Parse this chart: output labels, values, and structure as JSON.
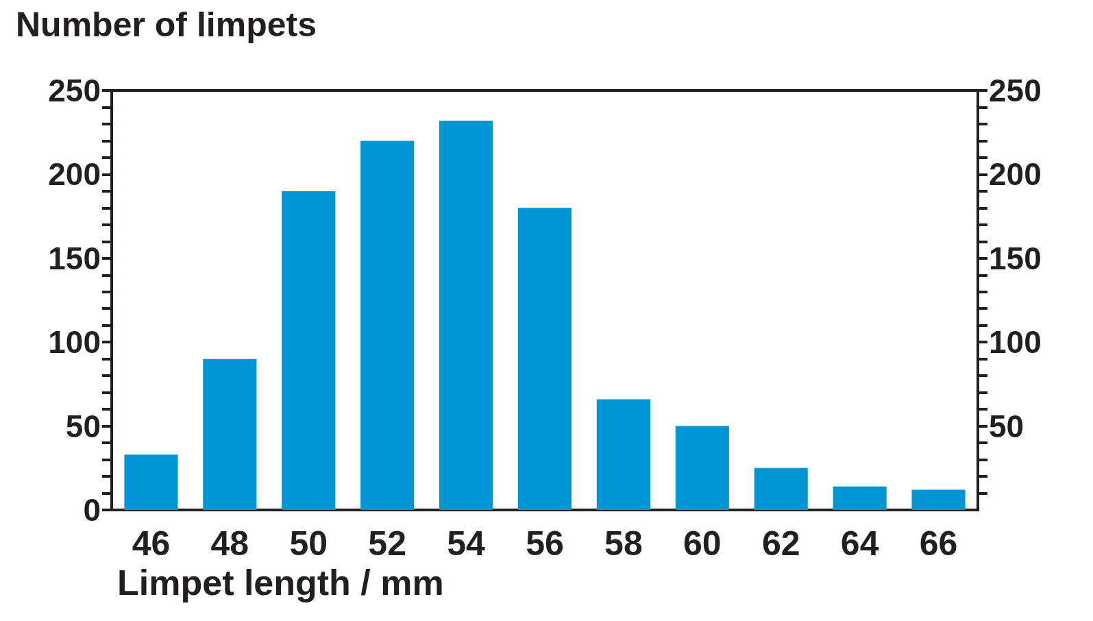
{
  "chart_data": {
    "type": "bar",
    "title": "Number of limpets",
    "xlabel": "Limpet length / mm",
    "categories": [
      "46",
      "48",
      "50",
      "52",
      "54",
      "56",
      "58",
      "60",
      "62",
      "64",
      "66"
    ],
    "values": [
      33,
      90,
      190,
      220,
      232,
      180,
      66,
      50,
      25,
      14,
      12
    ],
    "color": "#0096d6",
    "ylim": [
      0,
      250
    ],
    "yticks": [
      0,
      {
        "value": 10,
        "label": null
      },
      {
        "value": 20,
        "label": null
      },
      {
        "value": 30,
        "label": null
      },
      {
        "value": 40,
        "label": null
      },
      50,
      {
        "value": 60,
        "label": null
      },
      {
        "value": 70,
        "label": null
      },
      {
        "value": 80,
        "label": null
      },
      {
        "value": 90,
        "label": null
      },
      100,
      {
        "value": 110,
        "label": null
      },
      {
        "value": 120,
        "label": null
      },
      {
        "value": 130,
        "label": null
      },
      {
        "value": 140,
        "label": null
      },
      150,
      {
        "value": 160,
        "label": null
      },
      {
        "value": 170,
        "label": null
      },
      {
        "value": 180,
        "label": null
      },
      {
        "value": 190,
        "label": null
      },
      200,
      {
        "value": 210,
        "label": null
      },
      {
        "value": 220,
        "label": null
      },
      {
        "value": 230,
        "label": null
      },
      {
        "value": 240,
        "label": null
      },
      250
    ],
    "y2lim": [
      0,
      250
    ],
    "y2ticks": [
      {
        "value": 10,
        "label": null
      },
      {
        "value": 20,
        "label": null
      },
      {
        "value": 30,
        "label": null
      },
      {
        "value": 40,
        "label": null
      },
      50,
      {
        "value": 60,
        "label": null
      },
      {
        "value": 70,
        "label": null
      },
      {
        "value": 80,
        "label": null
      },
      {
        "value": 90,
        "label": null
      },
      100,
      {
        "value": 110,
        "label": null
      },
      {
        "value": 120,
        "label": null
      },
      {
        "value": 130,
        "label": null
      },
      {
        "value": 140,
        "label": null
      },
      150,
      {
        "value": 160,
        "label": null
      },
      {
        "value": 170,
        "label": null
      },
      {
        "value": 180,
        "label": null
      },
      {
        "value": 190,
        "label": null
      },
      200,
      {
        "value": 210,
        "label": null
      },
      {
        "value": 220,
        "label": null
      },
      {
        "value": 230,
        "label": null
      },
      {
        "value": 240,
        "label": null
      },
      250
    ],
    "grid": false
  }
}
